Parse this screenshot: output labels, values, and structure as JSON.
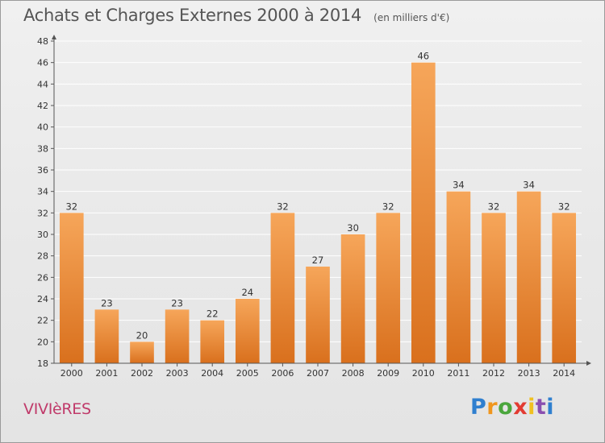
{
  "header": {
    "title": "Achats et Charges Externes 2000 à 2014",
    "unit": "(en milliers d'€)"
  },
  "footer": {
    "town": "VIVIèRES",
    "logo_letters": [
      "P",
      "r",
      "o",
      "x",
      "i",
      "t",
      "i"
    ]
  },
  "colors": {
    "bar_light": "#f6a65a",
    "bar_dark": "#d9701d",
    "axis": "#555555",
    "grid": "#ffffff",
    "town": "#c03a6a"
  },
  "chart_data": {
    "type": "bar",
    "title": "Achats et Charges Externes 2000 à 2014",
    "subtitle": "(en milliers d'€)",
    "xlabel": "",
    "ylabel": "",
    "categories": [
      "2000",
      "2001",
      "2002",
      "2003",
      "2004",
      "2005",
      "2006",
      "2007",
      "2008",
      "2009",
      "2010",
      "2011",
      "2012",
      "2013",
      "2014"
    ],
    "values": [
      32,
      23,
      20,
      23,
      22,
      24,
      32,
      27,
      30,
      32,
      46,
      34,
      32,
      34,
      32
    ],
    "ylim": [
      18,
      48
    ],
    "yticks": [
      18,
      20,
      22,
      24,
      26,
      28,
      30,
      32,
      34,
      36,
      38,
      40,
      42,
      44,
      46,
      48
    ],
    "grid": true,
    "data_labels": true
  }
}
